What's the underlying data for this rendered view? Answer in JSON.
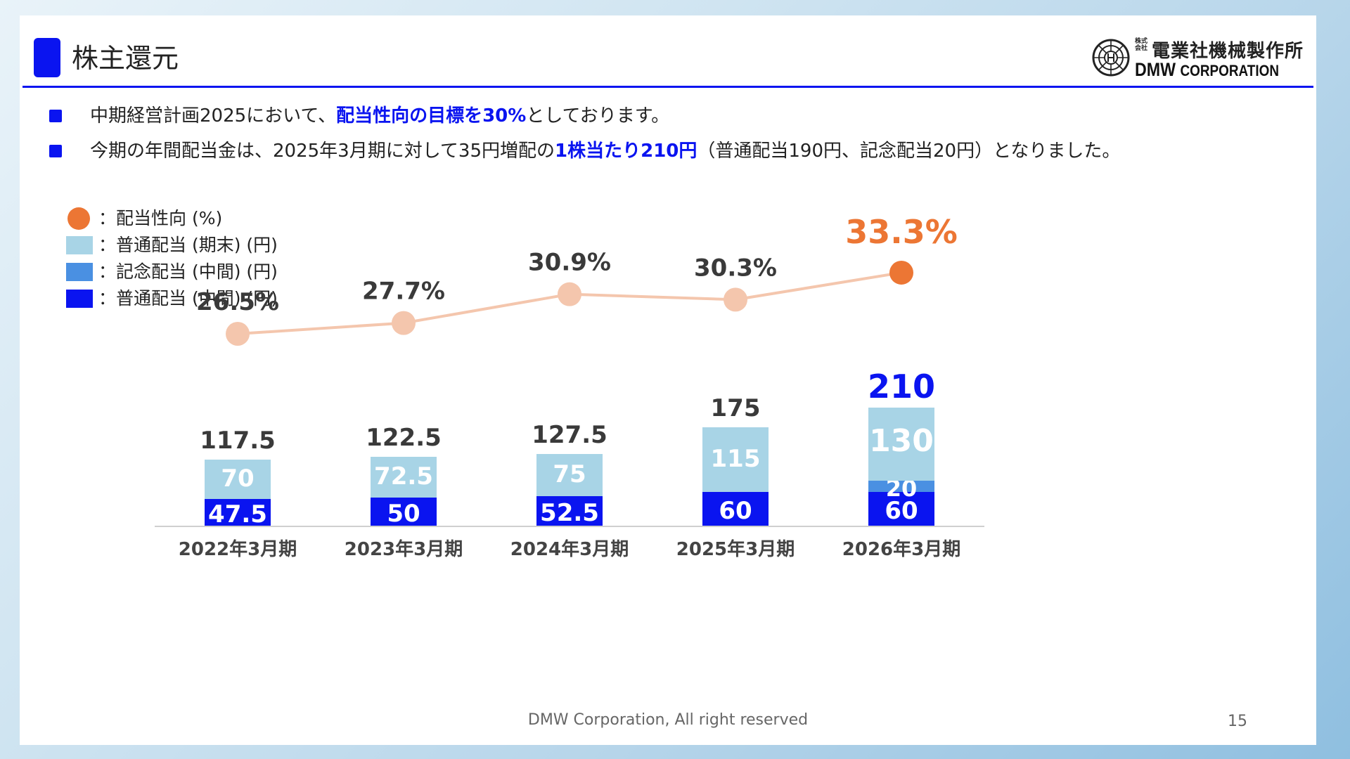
{
  "page": {
    "title": "株主還元",
    "logo": {
      "jp_small": "株式会社",
      "jp_name": "電業社機械製作所",
      "en_name": "DMW",
      "en_corp": "CORPORATION"
    },
    "bullets": [
      {
        "pre": "中期経営計画2025において、",
        "highlight": "配当性向の目標を30%",
        "post": "としております。"
      },
      {
        "pre": "今期の年間配当金は、2025年3月期に対して35円増配の",
        "highlight": "1株当たり210円",
        "post": "（普通配当190円、記念配当20円）となりました。"
      }
    ],
    "footer": "DMW Corporation, All right reserved",
    "page_number": "15"
  },
  "colors": {
    "brand": "#0a14f0",
    "payout_line": "#f4c6ad",
    "payout_latest": "#ec7634",
    "year_end": "#a8d4e6",
    "commemorative": "#4a90e2",
    "interim": "#0a14f0"
  },
  "chart_data": {
    "type": "bar",
    "stacked": true,
    "categories": [
      "2022年3月期",
      "2023年3月期",
      "2024年3月期",
      "2025年3月期",
      "2026年3月期"
    ],
    "series": [
      {
        "name": "：普通配当 (中間) (円)",
        "color": "#0a14f0",
        "values": [
          47.5,
          50,
          52.5,
          60,
          60
        ],
        "labels": [
          "47.5",
          "50",
          "52.5",
          "60",
          "60"
        ]
      },
      {
        "name": "：記念配当 (中間) (円)",
        "color": "#4a90e2",
        "values": [
          0,
          0,
          0,
          0,
          20
        ],
        "labels": [
          "",
          "",
          "",
          "",
          "20"
        ]
      },
      {
        "name": "：普通配当 (期末) (円)",
        "color": "#a8d4e6",
        "values": [
          70,
          72.5,
          75,
          115,
          130
        ],
        "labels": [
          "70",
          "72.5",
          "75",
          "115",
          "130"
        ]
      }
    ],
    "totals": [
      117.5,
      122.5,
      127.5,
      175,
      210
    ],
    "total_labels": [
      "117.5",
      "122.5",
      "127.5",
      "175",
      "210"
    ],
    "line_series": {
      "name": "：配当性向 (%)",
      "values": [
        26.5,
        27.7,
        30.9,
        30.3,
        33.3
      ],
      "labels": [
        "26.5%",
        "27.7%",
        "30.9%",
        "30.3%",
        "33.3%"
      ]
    },
    "legend": [
      {
        "label": "：配当性向 (%)",
        "shape": "circle",
        "color": "#ec7634"
      },
      {
        "label": "：普通配当 (期末) (円)",
        "shape": "square",
        "color": "#a8d4e6"
      },
      {
        "label": "：記念配当 (中間) (円)",
        "shape": "square",
        "color": "#4a90e2"
      },
      {
        "label": "：普通配当 (中間) (円)",
        "shape": "square",
        "color": "#0a14f0"
      }
    ],
    "legend_position": "top-left",
    "grid": false
  }
}
